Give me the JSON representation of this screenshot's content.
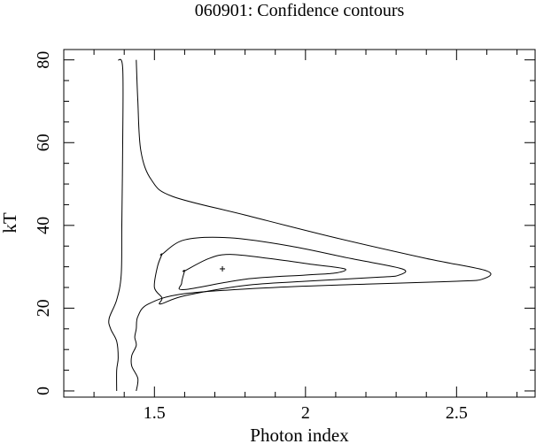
{
  "chart_data": {
    "type": "line",
    "title": "060901: Confidence contours",
    "xlabel": "Photon index",
    "ylabel": "kT",
    "xlim": [
      1.2,
      2.76
    ],
    "ylim": [
      -1.5,
      82.5
    ],
    "x_ticks": [
      "1.5",
      "2",
      "2.5"
    ],
    "y_ticks": [
      "0",
      "20",
      "40",
      "60",
      "80"
    ],
    "x_tick_values": [
      1.5,
      2,
      2.5
    ],
    "y_tick_values": [
      0,
      20,
      40,
      60,
      80
    ],
    "grid": false,
    "best_fit": {
      "x": 1.725,
      "y": 29.5
    },
    "series": [
      {
        "points": [
          [
            1.38,
            80
          ],
          [
            1.395,
            78
          ],
          [
            1.395,
            60
          ],
          [
            1.392,
            40
          ],
          [
            1.39,
            28
          ],
          [
            1.375,
            22
          ],
          [
            1.35,
            17.5
          ],
          [
            1.355,
            15
          ],
          [
            1.375,
            12
          ],
          [
            1.38,
            8
          ],
          [
            1.375,
            5
          ],
          [
            1.375,
            0
          ]
        ]
      },
      {
        "points": [
          [
            1.44,
            80
          ],
          [
            1.445,
            70
          ],
          [
            1.455,
            58
          ],
          [
            1.49,
            51
          ],
          [
            1.56,
            47
          ],
          [
            1.8,
            42.5
          ],
          [
            2.1,
            37
          ],
          [
            2.4,
            32
          ],
          [
            2.6,
            29
          ],
          [
            2.585,
            27
          ],
          [
            2.5,
            26.5
          ],
          [
            2.2,
            25.8
          ],
          [
            1.9,
            25
          ],
          [
            1.6,
            23.5
          ],
          [
            1.48,
            21
          ],
          [
            1.445,
            18
          ],
          [
            1.44,
            15
          ],
          [
            1.435,
            13
          ],
          [
            1.44,
            11
          ],
          [
            1.425,
            8.5
          ],
          [
            1.425,
            6
          ],
          [
            1.445,
            3
          ],
          [
            1.44,
            0
          ]
        ]
      },
      {
        "points": [
          [
            1.525,
            33
          ],
          [
            1.6,
            36.5
          ],
          [
            1.75,
            37
          ],
          [
            1.95,
            35
          ],
          [
            2.15,
            32
          ],
          [
            2.32,
            29.5
          ],
          [
            2.31,
            28
          ],
          [
            2.25,
            27.5
          ],
          [
            2.0,
            26.5
          ],
          [
            1.8,
            25.5
          ],
          [
            1.6,
            23
          ],
          [
            1.52,
            21
          ],
          [
            1.525,
            22.5
          ],
          [
            1.5,
            25
          ],
          [
            1.51,
            30
          ],
          [
            1.525,
            33
          ]
        ],
        "closed": true
      },
      {
        "points": [
          [
            1.6,
            29
          ],
          [
            1.68,
            32
          ],
          [
            1.75,
            33
          ],
          [
            1.88,
            32
          ],
          [
            2.03,
            30.5
          ],
          [
            2.13,
            29.5
          ],
          [
            2.1,
            28.5
          ],
          [
            2.0,
            28
          ],
          [
            1.8,
            27
          ],
          [
            1.6,
            24.5
          ],
          [
            1.59,
            26
          ],
          [
            1.6,
            29
          ]
        ],
        "closed": true
      }
    ]
  }
}
